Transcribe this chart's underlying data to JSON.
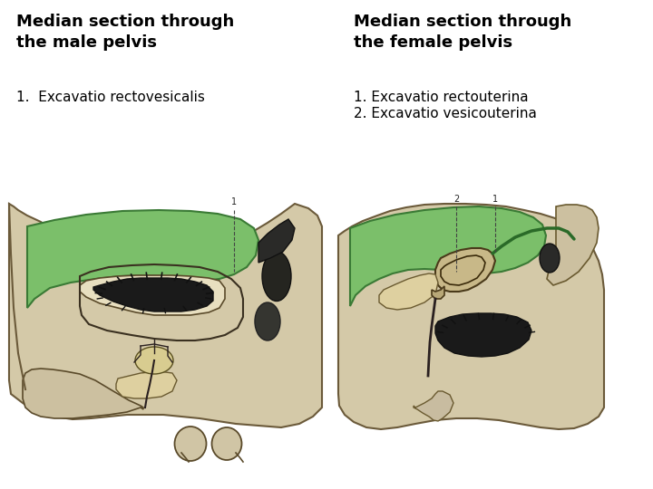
{
  "bg_color": "#ffffff",
  "left_title_line1": "Median section through",
  "left_title_line2": "the male pelvis",
  "right_title_line1": "Median section through",
  "right_title_line2": "the female pelvis",
  "left_label": "1.  Excavatio rectovesicalis",
  "right_label1": "1. Excavatio rectouterina",
  "right_label2": "2. Excavatio vesicouterina",
  "title_fontsize": 13,
  "label_fontsize": 11,
  "title_fontweight": "bold"
}
